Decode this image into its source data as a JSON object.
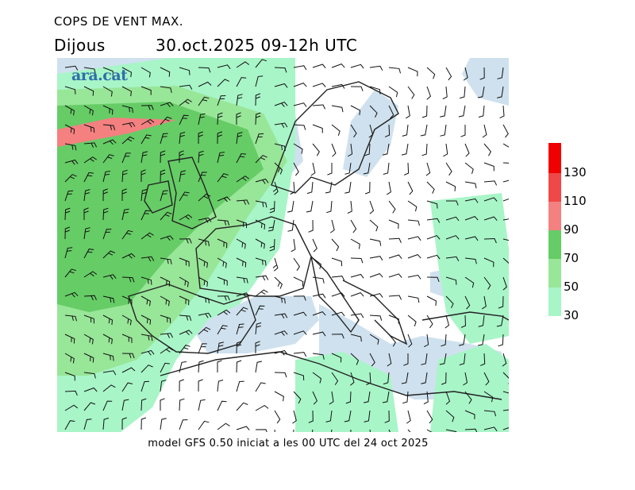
{
  "header": {
    "title": "COPS DE VENT MAX.",
    "day": "Dijous",
    "valid": "30.oct.2025 09-12h UTC"
  },
  "logo": {
    "text": "ara.cat"
  },
  "footer": {
    "text": "model GFS 0.50 iniciat a les 00 UTC del 24 oct 2025"
  },
  "legend": {
    "levels": [
      {
        "label": "30",
        "color": "#a8f5c8"
      },
      {
        "label": "50",
        "color": "#98e698"
      },
      {
        "label": "70",
        "color": "#66cc66"
      },
      {
        "label": "90",
        "color": "#f48080"
      },
      {
        "label": "110",
        "color": "#f04848"
      },
      {
        "label": "130",
        "color": "#f00000"
      }
    ],
    "top_color": "#e80000"
  },
  "map": {
    "sea_color": "#cfe1ee",
    "land_color": "#ffffff",
    "coast_color": "#222222"
  }
}
